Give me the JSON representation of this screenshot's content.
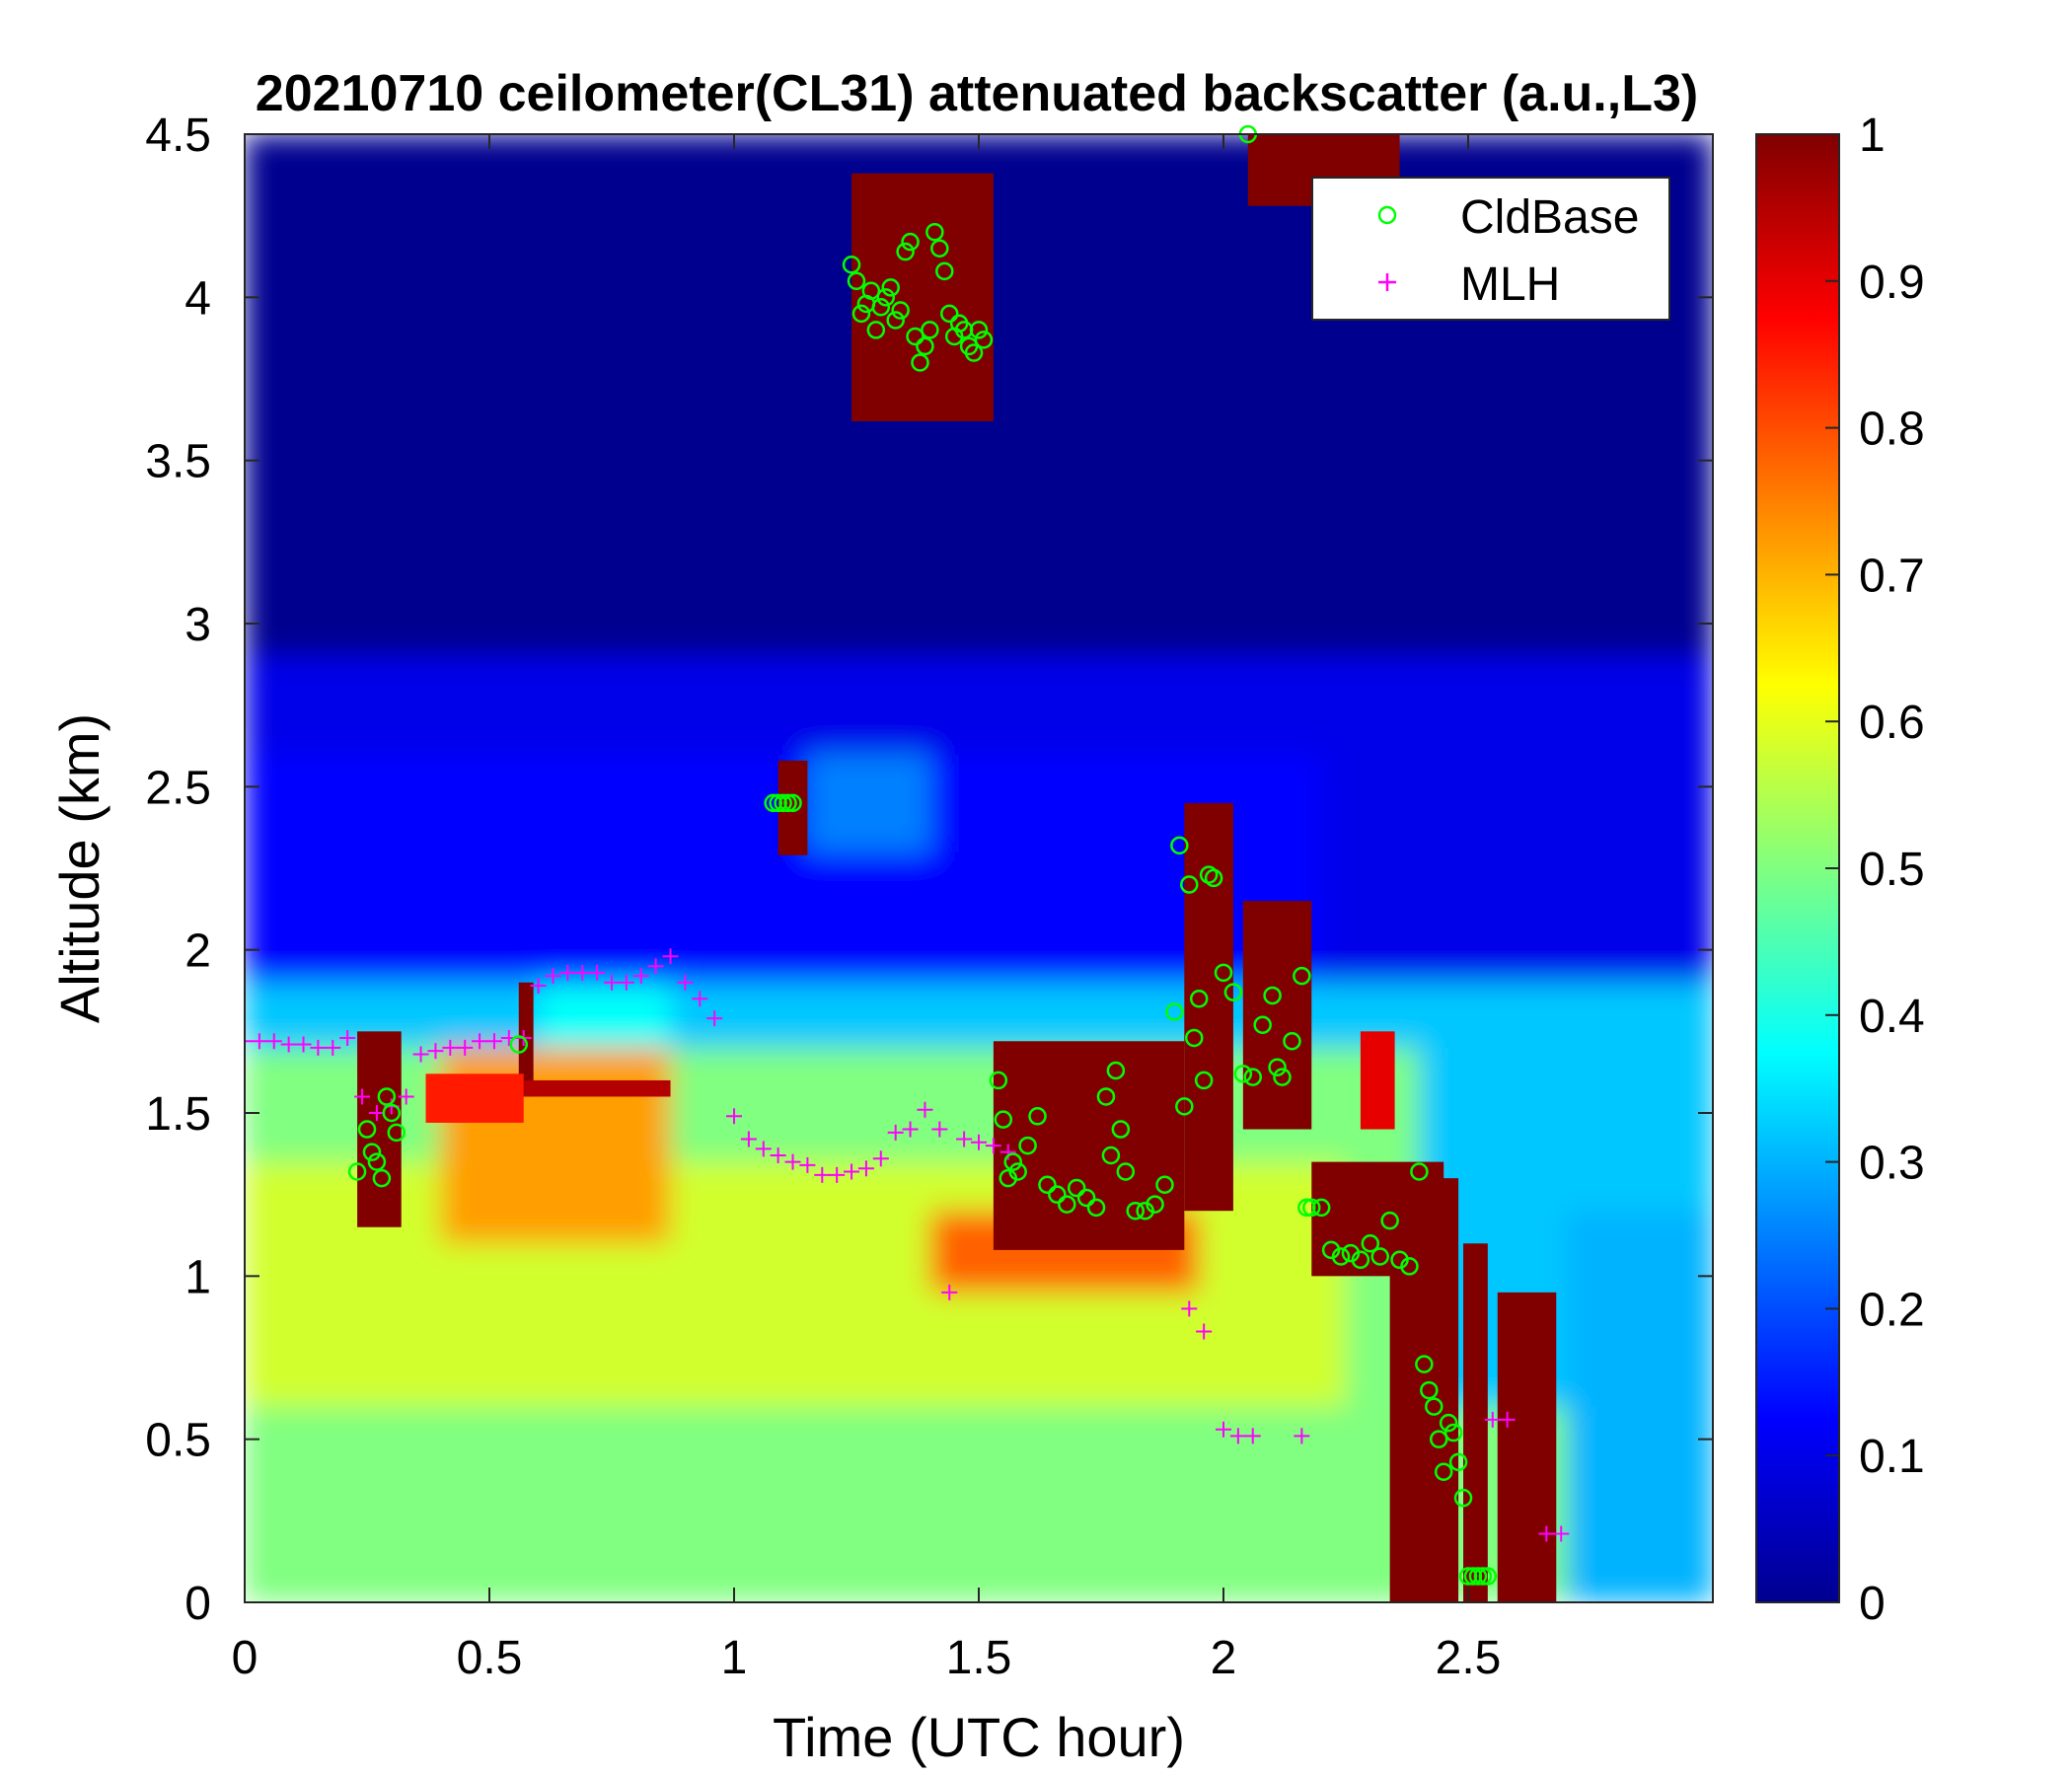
{
  "chart_data": {
    "type": "heatmap",
    "title": "20210710 ceilometer(CL31) attenuated backscatter (a.u.,L3)",
    "xlabel": "Time (UTC hour)",
    "ylabel": "Altitude (km)",
    "xlim": [
      0,
      3.0
    ],
    "ylim": [
      0,
      4.5
    ],
    "xticks": [
      0,
      0.5,
      1,
      1.5,
      2,
      2.5
    ],
    "xtick_labels": [
      "0",
      "0.5",
      "1",
      "1.5",
      "2",
      "2.5"
    ],
    "yticks": [
      0,
      0.5,
      1,
      1.5,
      2,
      2.5,
      3,
      3.5,
      4,
      4.5
    ],
    "ytick_labels": [
      "0",
      "0.5",
      "1",
      "1.5",
      "2",
      "2.5",
      "3",
      "3.5",
      "4",
      "4.5"
    ],
    "colorbar": {
      "colormap": "jet",
      "clim": [
        0,
        1
      ],
      "ticks": [
        0,
        0.1,
        0.2,
        0.3,
        0.4,
        0.5,
        0.6,
        0.7,
        0.8,
        0.9,
        1
      ],
      "tick_labels": [
        "0",
        "0.1",
        "0.2",
        "0.3",
        "0.4",
        "0.5",
        "0.6",
        "0.7",
        "0.8",
        "0.9",
        "1"
      ],
      "colors": [
        "#00008f",
        "#0000ff",
        "#0080ff",
        "#00ffff",
        "#80ff80",
        "#ffff00",
        "#ff8000",
        "#ff0000",
        "#800000"
      ]
    },
    "legend": {
      "location": "top-right",
      "entries": [
        {
          "label": "CldBase",
          "marker": "circle",
          "color": "#00ff00"
        },
        {
          "label": "MLH",
          "marker": "plus",
          "color": "#ff00ff"
        }
      ]
    },
    "background_regions": [
      {
        "x": [
          0.0,
          3.0
        ],
        "y": [
          0.0,
          4.5
        ],
        "value": 0.0
      },
      {
        "x": [
          0.0,
          3.0
        ],
        "y": [
          0.0,
          2.9
        ],
        "value": 0.1
      },
      {
        "x": [
          0.0,
          2.2
        ],
        "y": [
          0.0,
          2.6
        ],
        "value": 0.13
      },
      {
        "x": [
          1.15,
          1.4
        ],
        "y": [
          2.3,
          2.6
        ],
        "value": 0.25
      },
      {
        "x": [
          0.0,
          3.0
        ],
        "y": [
          0.0,
          1.9
        ],
        "value": 0.32
      },
      {
        "x": [
          0.0,
          2.4
        ],
        "y": [
          0.0,
          1.7
        ],
        "value": 0.5
      },
      {
        "x": [
          0.6,
          0.87
        ],
        "y": [
          1.6,
          1.9
        ],
        "value": 0.38
      },
      {
        "x": [
          0.0,
          2.25
        ],
        "y": [
          0.0,
          1.35
        ],
        "value": 0.58
      },
      {
        "x": [
          0.4,
          0.87
        ],
        "y": [
          1.1,
          1.7
        ],
        "value": 0.72
      },
      {
        "x": [
          1.4,
          1.95
        ],
        "y": [
          0.95,
          1.2
        ],
        "value": 0.78
      },
      {
        "x": [
          0.0,
          3.0
        ],
        "y": [
          0.0,
          0.6
        ],
        "value": 0.5
      },
      {
        "x": [
          2.7,
          3.0
        ],
        "y": [
          0.0,
          1.2
        ],
        "value": 0.3
      }
    ],
    "cloud_regions": [
      {
        "x": [
          1.24,
          1.53
        ],
        "y": [
          3.62,
          4.38
        ],
        "value": 1.0
      },
      {
        "x": [
          2.05,
          2.36
        ],
        "y": [
          4.28,
          4.5
        ],
        "value": 1.0
      },
      {
        "x": [
          1.09,
          1.15
        ],
        "y": [
          2.29,
          2.58
        ],
        "value": 1.0
      },
      {
        "x": [
          0.23,
          0.32
        ],
        "y": [
          1.15,
          1.75
        ],
        "value": 1.0
      },
      {
        "x": [
          0.56,
          0.59
        ],
        "y": [
          1.55,
          1.9
        ],
        "value": 1.0
      },
      {
        "x": [
          0.57,
          0.87
        ],
        "y": [
          1.55,
          1.6
        ],
        "value": 0.95
      },
      {
        "x": [
          0.37,
          0.57
        ],
        "y": [
          1.47,
          1.62
        ],
        "value": 0.85
      },
      {
        "x": [
          1.53,
          1.92
        ],
        "y": [
          1.08,
          1.72
        ],
        "value": 1.0
      },
      {
        "x": [
          1.92,
          2.02
        ],
        "y": [
          1.2,
          2.45
        ],
        "value": 1.0
      },
      {
        "x": [
          2.04,
          2.18
        ],
        "y": [
          1.45,
          2.15
        ],
        "value": 1.0
      },
      {
        "x": [
          2.28,
          2.35
        ],
        "y": [
          1.45,
          1.75
        ],
        "value": 0.9
      },
      {
        "x": [
          2.18,
          2.45
        ],
        "y": [
          1.0,
          1.35
        ],
        "value": 1.0
      },
      {
        "x": [
          2.34,
          2.48
        ],
        "y": [
          0.0,
          1.3
        ],
        "value": 1.0
      },
      {
        "x": [
          2.49,
          2.54
        ],
        "y": [
          0.0,
          1.1
        ],
        "value": 1.0
      },
      {
        "x": [
          2.56,
          2.68
        ],
        "y": [
          0.0,
          0.95
        ],
        "value": 1.0
      }
    ],
    "series": [
      {
        "name": "CldBase",
        "marker": "circle",
        "x": [
          0.23,
          0.25,
          0.26,
          0.27,
          0.28,
          0.29,
          0.3,
          0.31,
          0.56,
          1.08,
          1.09,
          1.1,
          1.11,
          1.12,
          1.24,
          1.25,
          1.26,
          1.27,
          1.28,
          1.29,
          1.3,
          1.31,
          1.32,
          1.33,
          1.34,
          1.35,
          1.36,
          1.37,
          1.38,
          1.39,
          1.4,
          1.41,
          1.42,
          1.43,
          1.44,
          1.45,
          1.46,
          1.47,
          1.48,
          1.49,
          1.5,
          1.51,
          2.05,
          1.54,
          1.55,
          1.56,
          1.57,
          1.58,
          1.6,
          1.62,
          1.64,
          1.66,
          1.68,
          1.7,
          1.72,
          1.74,
          1.76,
          1.77,
          1.78,
          1.79,
          1.8,
          1.82,
          1.84,
          1.86,
          1.88,
          1.9,
          1.91,
          1.92,
          1.93,
          1.94,
          1.95,
          1.96,
          1.97,
          1.98,
          2.0,
          2.02,
          2.04,
          2.06,
          2.08,
          2.1,
          2.11,
          2.12,
          2.14,
          2.16,
          2.17,
          2.18,
          2.2,
          2.22,
          2.24,
          2.26,
          2.28,
          2.3,
          2.32,
          2.34,
          2.36,
          2.38,
          2.4,
          2.41,
          2.42,
          2.43,
          2.44,
          2.45,
          2.46,
          2.47,
          2.48,
          2.49,
          2.5,
          2.51,
          2.52,
          2.53,
          2.54
        ],
        "y": [
          1.32,
          1.45,
          1.38,
          1.35,
          1.3,
          1.55,
          1.5,
          1.44,
          1.71,
          2.45,
          2.45,
          2.45,
          2.45,
          2.45,
          4.1,
          4.05,
          3.95,
          3.98,
          4.02,
          3.9,
          3.97,
          4.0,
          4.03,
          3.93,
          3.96,
          4.14,
          4.17,
          3.88,
          3.8,
          3.85,
          3.9,
          4.2,
          4.15,
          4.08,
          3.95,
          3.88,
          3.92,
          3.9,
          3.85,
          3.83,
          3.9,
          3.87,
          4.5,
          1.6,
          1.48,
          1.3,
          1.35,
          1.32,
          1.4,
          1.49,
          1.28,
          1.25,
          1.22,
          1.27,
          1.24,
          1.21,
          1.55,
          1.37,
          1.63,
          1.45,
          1.32,
          1.2,
          1.2,
          1.22,
          1.28,
          1.81,
          2.32,
          1.52,
          2.2,
          1.73,
          1.85,
          1.6,
          2.23,
          2.22,
          1.93,
          1.87,
          1.62,
          1.61,
          1.77,
          1.86,
          1.64,
          1.61,
          1.72,
          1.92,
          1.21,
          1.21,
          1.21,
          1.08,
          1.06,
          1.07,
          1.05,
          1.1,
          1.06,
          1.17,
          1.05,
          1.03,
          1.32,
          0.73,
          0.65,
          0.6,
          0.5,
          0.4,
          0.55,
          0.52,
          0.43,
          0.32,
          0.08,
          0.08,
          0.08,
          0.08,
          0.08
        ]
      },
      {
        "name": "MLH",
        "marker": "plus",
        "x": [
          0.0,
          0.03,
          0.06,
          0.09,
          0.12,
          0.15,
          0.18,
          0.21,
          0.24,
          0.27,
          0.3,
          0.33,
          0.36,
          0.39,
          0.42,
          0.45,
          0.48,
          0.51,
          0.54,
          0.57,
          0.6,
          0.63,
          0.66,
          0.69,
          0.72,
          0.75,
          0.78,
          0.81,
          0.84,
          0.87,
          0.9,
          0.93,
          0.96,
          1.0,
          1.03,
          1.06,
          1.09,
          1.12,
          1.15,
          1.18,
          1.21,
          1.24,
          1.27,
          1.3,
          1.33,
          1.36,
          1.39,
          1.42,
          1.44,
          1.47,
          1.5,
          1.53,
          1.56,
          1.93,
          1.96,
          2.0,
          2.03,
          2.06,
          2.16,
          2.55,
          2.58,
          2.66,
          2.69
        ],
        "y": [
          1.72,
          1.72,
          1.72,
          1.71,
          1.71,
          1.7,
          1.7,
          1.73,
          1.55,
          1.5,
          1.52,
          1.55,
          1.68,
          1.69,
          1.7,
          1.7,
          1.72,
          1.72,
          1.73,
          1.73,
          1.89,
          1.92,
          1.93,
          1.93,
          1.93,
          1.9,
          1.9,
          1.92,
          1.95,
          1.98,
          1.9,
          1.85,
          1.79,
          1.49,
          1.42,
          1.39,
          1.37,
          1.35,
          1.34,
          1.31,
          1.31,
          1.32,
          1.33,
          1.36,
          1.44,
          1.45,
          1.51,
          1.45,
          0.95,
          1.42,
          1.41,
          1.4,
          1.38,
          0.9,
          0.83,
          0.53,
          0.51,
          0.51,
          0.51,
          0.56,
          0.56,
          0.21,
          0.21
        ]
      }
    ]
  }
}
